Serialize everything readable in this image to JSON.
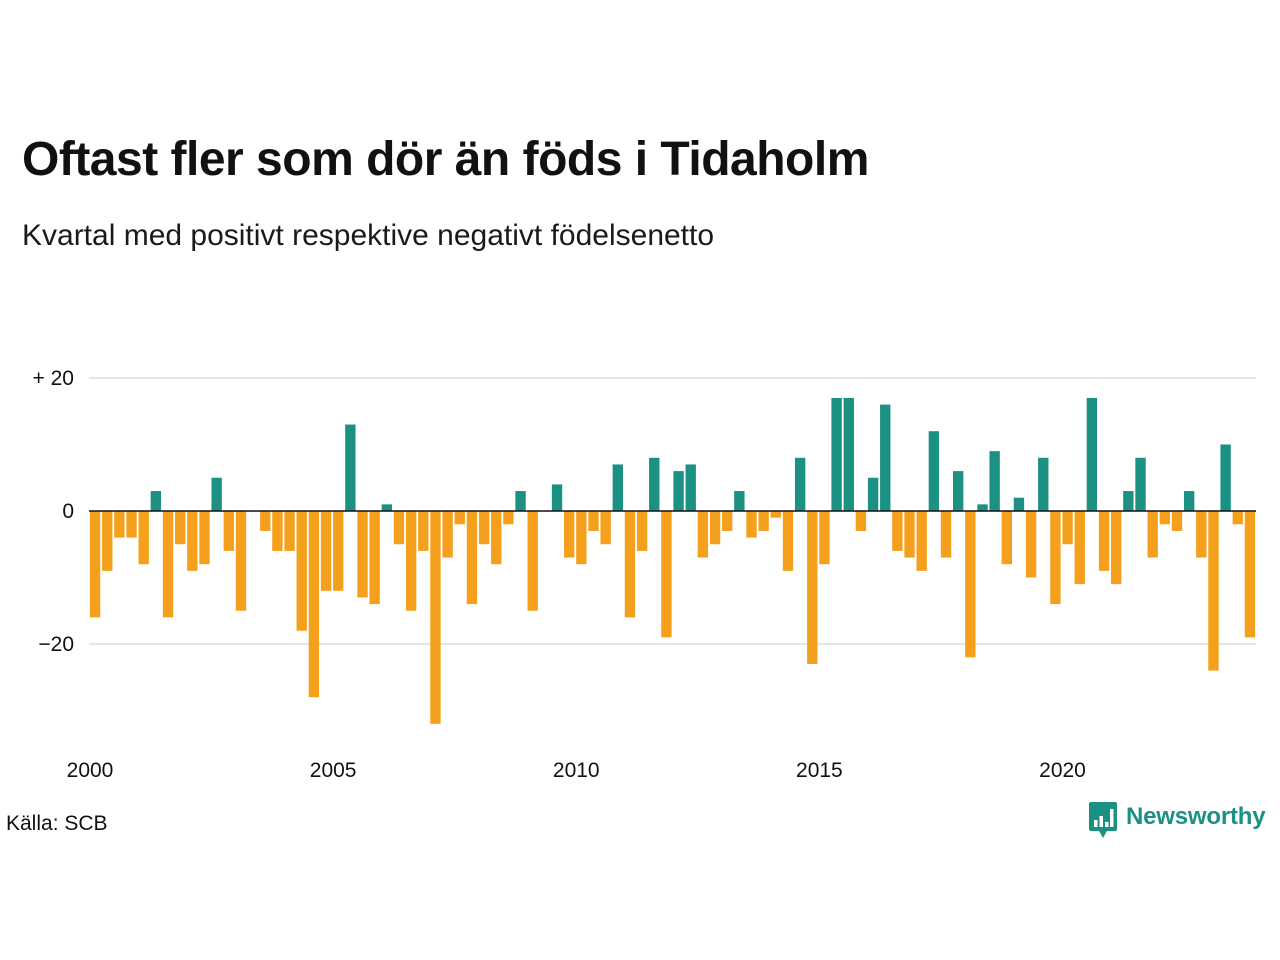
{
  "chart_data": {
    "type": "bar",
    "title": "Oftast fler som dör än föds i Tidaholm",
    "subtitle": "Kvartal med positivt respektive negativt födelsenetto",
    "xlabel": "",
    "ylabel": "",
    "x_start": 2000,
    "periods_per_year": 4,
    "values": [
      -16,
      -9,
      -4,
      -4,
      -8,
      3,
      -16,
      -5,
      -9,
      -8,
      5,
      -6,
      -15,
      0,
      -3,
      -6,
      -6,
      -18,
      -28,
      -12,
      -12,
      13,
      -13,
      -14,
      1,
      -5,
      -15,
      -6,
      -32,
      -7,
      -2,
      -14,
      -5,
      -8,
      -2,
      3,
      -15,
      0,
      4,
      -7,
      -8,
      -3,
      -5,
      7,
      -16,
      -6,
      8,
      -19,
      6,
      7,
      -7,
      -5,
      -3,
      3,
      -4,
      -3,
      -1,
      -9,
      8,
      -23,
      -8,
      17,
      17,
      -3,
      5,
      16,
      -6,
      -7,
      -9,
      12,
      -7,
      6,
      -22,
      1,
      9,
      -8,
      2,
      -10,
      8,
      -14,
      -5,
      -11,
      17,
      -9,
      -11,
      3,
      8,
      -7,
      -2,
      -3,
      3,
      -7,
      -24,
      10,
      -2,
      -19
    ],
    "ylim": [
      -33,
      21
    ],
    "y_ticks": [
      {
        "value": 20,
        "label": "+ 20"
      },
      {
        "value": 0,
        "label": "0"
      },
      {
        "value": -20,
        "label": "−20"
      }
    ],
    "x_ticks": [
      {
        "value": 2000,
        "label": "2000"
      },
      {
        "value": 2005,
        "label": "2005"
      },
      {
        "value": 2010,
        "label": "2010"
      },
      {
        "value": 2015,
        "label": "2015"
      },
      {
        "value": 2020,
        "label": "2020"
      }
    ],
    "grid": true,
    "legend": "none",
    "colors": {
      "positive": "#1a9183",
      "negative": "#f5a01c",
      "zero_line": "#111111",
      "grid": "#dddddd"
    }
  },
  "footer": {
    "source": "Källa: SCB",
    "brand": "Newsworthy",
    "brand_color": "#1a9183",
    "brand_icon": "bar-chart-speech-bubble-icon"
  }
}
